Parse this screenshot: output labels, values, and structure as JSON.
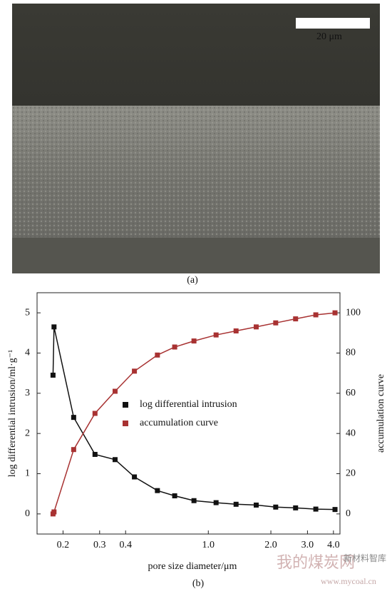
{
  "image_panel": {
    "scale_bar_label": "20 μm",
    "caption": "(a)"
  },
  "chart_data": {
    "type": "line",
    "caption": "(b)",
    "x_label": "pore size diameter/μm",
    "y_label": "log differential intrusion/ml·g⁻¹",
    "y2_label": "accumulation curve",
    "x": [
      0.179,
      0.181,
      0.225,
      0.285,
      0.356,
      0.441,
      0.569,
      0.689,
      0.853,
      1.09,
      1.36,
      1.7,
      2.11,
      2.63,
      3.29,
      4.07
    ],
    "series": [
      {
        "name": "log differential intrusion",
        "color": "#111111",
        "values": [
          3.45,
          4.65,
          2.4,
          1.48,
          1.35,
          0.92,
          0.58,
          0.45,
          0.33,
          0.28,
          0.24,
          0.22,
          0.17,
          0.15,
          0.12,
          0.11
        ]
      },
      {
        "name": "accumulation curve",
        "color": "#a83232",
        "axis": "y2",
        "values": [
          0,
          1,
          32,
          50,
          61,
          71,
          79,
          83,
          86,
          89,
          91,
          93,
          95,
          97,
          99,
          100
        ]
      }
    ],
    "log_x": true,
    "xlim": [
      0.15,
      4.3
    ],
    "xticks": [
      0.2,
      0.3,
      0.4,
      {
        "value": 1,
        "label": "1.0"
      },
      {
        "value": 2,
        "label": "2.0"
      },
      {
        "value": 3,
        "label": "3.0"
      },
      {
        "value": 4,
        "label": "4.0"
      }
    ],
    "ylim": [
      -0.5,
      5.5
    ],
    "yticks": [
      0,
      1,
      2,
      3,
      4,
      5
    ],
    "y2lim": [
      -10,
      110
    ],
    "y2ticks": [
      0,
      20,
      40,
      60,
      80,
      100
    ],
    "legend": "center"
  },
  "watermark": {
    "brand": "我的煤炭网",
    "url": "www.mycoal.cn",
    "tag": "新材料智库"
  }
}
